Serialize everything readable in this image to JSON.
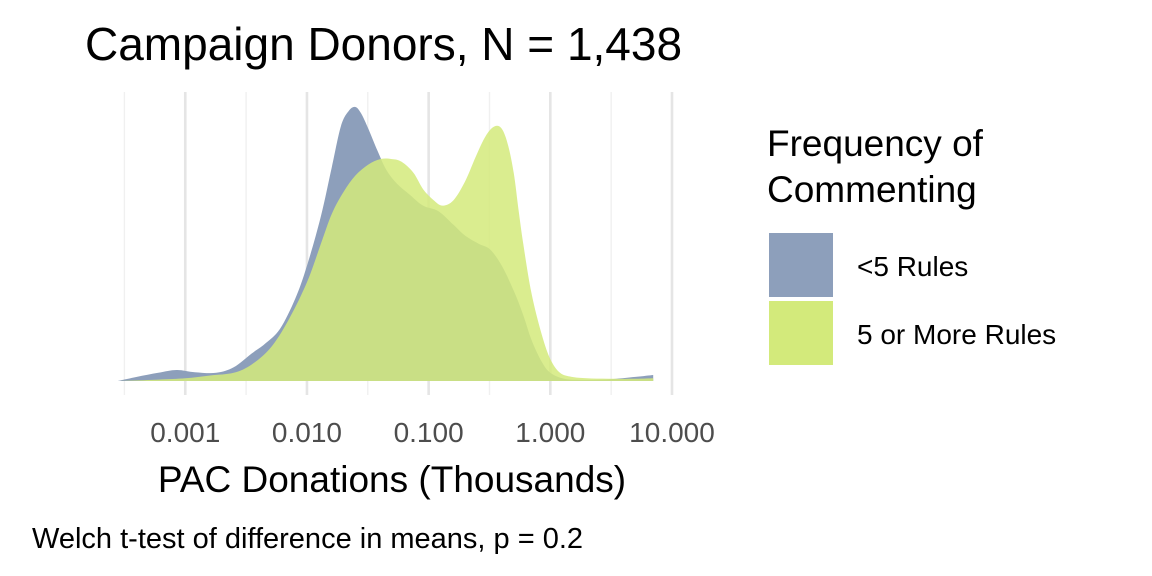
{
  "chart_data": {
    "type": "area",
    "title": "Campaign Donors, N = 1,438",
    "xlabel": "PAC Donations (Thousands)",
    "ylabel": "",
    "caption": "Welch t-test of difference in means, p = 0.2",
    "x_scale": "log10",
    "xlim": [
      0.00025,
      10
    ],
    "x_ticks": [
      0.001,
      0.01,
      0.1,
      1,
      10
    ],
    "x_tick_labels": [
      "0.001",
      "0.010",
      "0.100",
      "1.000",
      "10.000"
    ],
    "ylim": [
      0,
      1
    ],
    "grid": true,
    "legend": {
      "title": "Frequency of Commenting",
      "title_lines": [
        "Frequency of",
        "Commenting"
      ],
      "position": "right"
    },
    "series": [
      {
        "name": "<5 Rules",
        "color": "#8d9fbb",
        "x": [
          0.00028,
          0.0004,
          0.0006,
          0.00085,
          0.0012,
          0.0018,
          0.0025,
          0.0035,
          0.0045,
          0.006,
          0.008,
          0.01,
          0.013,
          0.016,
          0.019,
          0.022,
          0.025,
          0.028,
          0.032,
          0.038,
          0.045,
          0.055,
          0.07,
          0.09,
          0.12,
          0.16,
          0.2,
          0.26,
          0.32,
          0.4,
          0.5,
          0.6,
          0.7,
          0.85,
          1.0,
          1.3,
          1.8,
          3.0,
          5.0,
          7.0
        ],
        "y": [
          0.0,
          0.015,
          0.03,
          0.04,
          0.032,
          0.03,
          0.05,
          0.1,
          0.135,
          0.19,
          0.3,
          0.42,
          0.6,
          0.78,
          0.93,
          0.985,
          1.0,
          0.975,
          0.92,
          0.84,
          0.77,
          0.72,
          0.68,
          0.64,
          0.62,
          0.57,
          0.53,
          0.5,
          0.48,
          0.42,
          0.33,
          0.24,
          0.15,
          0.07,
          0.03,
          0.008,
          0.004,
          0.006,
          0.015,
          0.022
        ]
      },
      {
        "name": "5 or More Rules",
        "color": "#d3ea7b",
        "x": [
          0.00028,
          0.0006,
          0.001,
          0.0016,
          0.0025,
          0.0035,
          0.005,
          0.007,
          0.01,
          0.013,
          0.016,
          0.02,
          0.025,
          0.032,
          0.04,
          0.05,
          0.06,
          0.075,
          0.09,
          0.11,
          0.13,
          0.16,
          0.2,
          0.25,
          0.3,
          0.35,
          0.4,
          0.45,
          0.5,
          0.55,
          0.6,
          0.7,
          0.85,
          1.0,
          1.2,
          1.5,
          2.0,
          3.0,
          5.0,
          7.0
        ],
        "y": [
          0.0,
          0.005,
          0.01,
          0.02,
          0.03,
          0.06,
          0.12,
          0.22,
          0.36,
          0.5,
          0.61,
          0.69,
          0.75,
          0.79,
          0.81,
          0.81,
          0.8,
          0.76,
          0.7,
          0.66,
          0.64,
          0.66,
          0.73,
          0.83,
          0.9,
          0.93,
          0.92,
          0.86,
          0.76,
          0.62,
          0.5,
          0.32,
          0.17,
          0.08,
          0.03,
          0.015,
          0.01,
          0.008,
          0.008,
          0.01
        ]
      }
    ]
  }
}
